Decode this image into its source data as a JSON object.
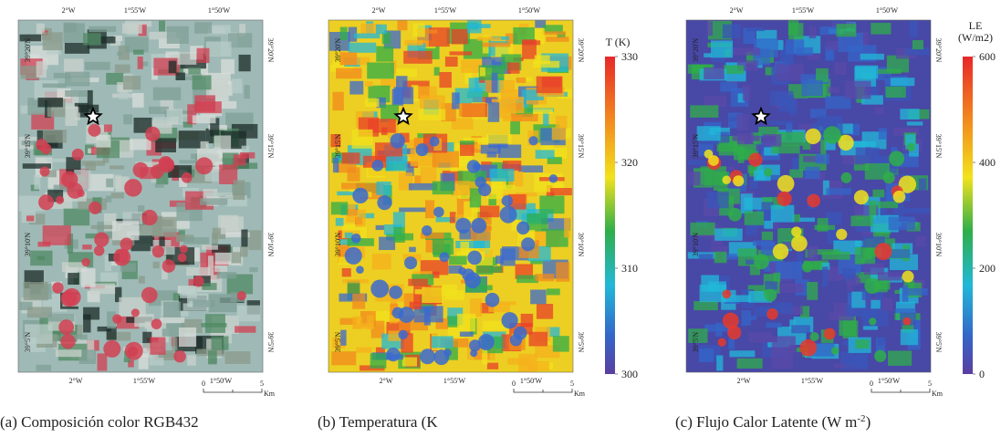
{
  "panels": [
    {
      "caption": "(a) Composición color RGB432",
      "top_lon": [
        "2°W",
        "1°55'W",
        "1°50'W"
      ],
      "bottom_lon": [
        "2°W",
        "1°55'W",
        "1°50'W"
      ],
      "left_lat": [
        "39°20'N",
        "39°15'N",
        "39°10'N",
        "39°5'N"
      ],
      "right_lat": [
        "39°20'N",
        "39°15'N",
        "39°10'N",
        "39°5'N"
      ],
      "scale": {
        "start": "0",
        "end": "5",
        "unit": "Km"
      }
    },
    {
      "caption": "(b) Temperatura (K",
      "top_lon": [
        "2°W",
        "1°55'W",
        "1°50'W"
      ],
      "bottom_lon": [
        "2°W",
        "1°55'W",
        "1°50'W"
      ],
      "left_lat": [
        "39°20'N",
        "39°15'N",
        "39°10'N",
        "39°5'N"
      ],
      "right_lat": [
        "39°20'N",
        "39°15'N",
        "39°10'N",
        "39°5'N"
      ],
      "scale": {
        "start": "0",
        "end": "5",
        "unit": "Km"
      }
    },
    {
      "caption": "(c) Flujo Calor Latente (W m",
      "caption_sup": "-2",
      "caption_end": ")",
      "top_lon": [
        "2°W",
        "1°55'W",
        "1°50'W"
      ],
      "bottom_lon": [
        "2°W",
        "1°55'W",
        "1°50'W"
      ],
      "left_lat": [
        "39°20'N",
        "39°15'N",
        "39°10'N",
        "39°5'N"
      ],
      "right_lat": [
        "39°20'N",
        "39°15'N",
        "39°10'N",
        "39°5'N"
      ],
      "scale": {
        "start": "0",
        "end": "5",
        "unit": "Km"
      }
    }
  ],
  "colorbars": [
    {
      "title": [
        "T (K)"
      ],
      "ticks": [
        "330",
        "320",
        "310",
        "300"
      ]
    },
    {
      "title": [
        "LE",
        "(W/m2)"
      ],
      "ticks": [
        "600",
        "400",
        "200",
        "0"
      ]
    }
  ]
}
